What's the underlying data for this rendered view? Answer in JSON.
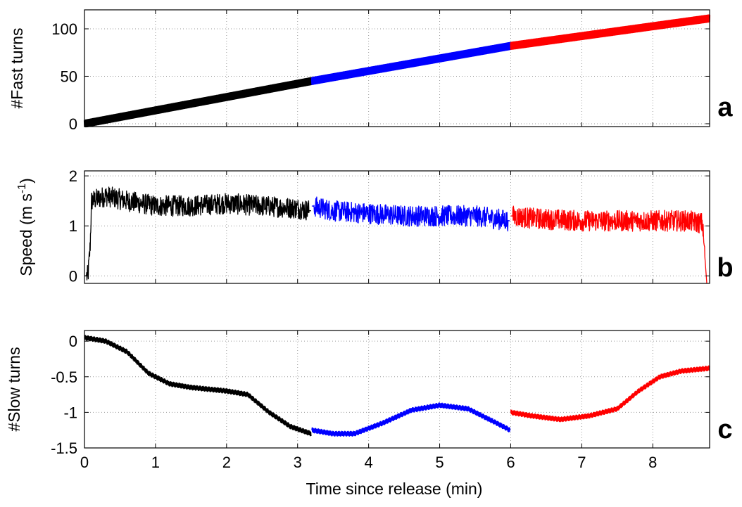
{
  "figure": {
    "x_axis_label": "Time since release (min)",
    "x_ticks": [
      0,
      1,
      2,
      3,
      4,
      5,
      6,
      7,
      8
    ],
    "x_range": [
      0,
      8.8
    ],
    "segment_colors": [
      "#000000",
      "#0000ff",
      "#ff0000"
    ],
    "segment_boundaries_min": [
      3.2,
      6.0
    ],
    "grid": "dotted"
  },
  "chart_data": [
    {
      "type": "line",
      "panel_letter": "a",
      "ylabel": "#Fast turns",
      "ylim": [
        -3,
        120
      ],
      "y_ticks": [
        0,
        50,
        100
      ],
      "y_tick_labels": [
        "0",
        "50",
        "100"
      ],
      "x": [
        0,
        3.2,
        6.0,
        8.8
      ],
      "series": [
        {
          "x": [
            0,
            3.2
          ],
          "y": [
            0,
            45
          ],
          "color": "#000000"
        },
        {
          "x": [
            3.2,
            6.0
          ],
          "y": [
            45,
            82
          ],
          "color": "#0000ff"
        },
        {
          "x": [
            6.0,
            8.8
          ],
          "y": [
            82,
            111
          ],
          "color": "#ff0000"
        }
      ]
    },
    {
      "type": "line",
      "panel_letter": "b",
      "ylabel": "Speed (m s-1)",
      "ylim": [
        -0.15,
        2.1
      ],
      "y_ticks": [
        0,
        1,
        2
      ],
      "y_tick_labels": [
        "0",
        "1",
        "2"
      ],
      "series": [
        {
          "x": [
            0,
            0.05,
            0.08,
            0.1,
            0.3,
            0.6,
            1.0,
            1.5,
            2.0,
            2.5,
            3.0,
            3.19
          ],
          "y": [
            0,
            0,
            0.6,
            1.5,
            1.6,
            1.5,
            1.4,
            1.4,
            1.45,
            1.4,
            1.35,
            1.3
          ],
          "color": "#000000"
        },
        {
          "x": [
            3.2,
            3.5,
            4.0,
            4.5,
            5.0,
            5.5,
            5.99
          ],
          "y": [
            1.4,
            1.3,
            1.25,
            1.2,
            1.2,
            1.2,
            1.1
          ],
          "color": "#0000ff"
        },
        {
          "x": [
            6.0,
            6.3,
            7.0,
            7.5,
            8.0,
            8.5,
            8.7,
            8.76
          ],
          "y": [
            1.2,
            1.15,
            1.1,
            1.1,
            1.1,
            1.1,
            1.05,
            -0.15
          ],
          "color": "#ff0000"
        }
      ]
    },
    {
      "type": "line",
      "panel_letter": "c",
      "ylabel": "#Slow turns",
      "ylim": [
        -1.5,
        0.15
      ],
      "y_ticks": [
        0,
        -0.5,
        -1,
        -1.5
      ],
      "y_tick_labels": [
        "0",
        "-0.5",
        "-1",
        "-1.5"
      ],
      "series": [
        {
          "x": [
            0,
            0.3,
            0.6,
            0.9,
            1.2,
            1.5,
            2.0,
            2.3,
            2.6,
            2.9,
            3.19
          ],
          "y": [
            0.05,
            0.0,
            -0.15,
            -0.45,
            -0.6,
            -0.65,
            -0.7,
            -0.75,
            -1.0,
            -1.2,
            -1.3
          ],
          "color": "#000000"
        },
        {
          "x": [
            3.2,
            3.5,
            3.8,
            4.2,
            4.6,
            5.0,
            5.4,
            5.8,
            5.99
          ],
          "y": [
            -1.25,
            -1.3,
            -1.3,
            -1.15,
            -0.97,
            -0.9,
            -0.95,
            -1.15,
            -1.25
          ],
          "color": "#0000ff"
        },
        {
          "x": [
            6.0,
            6.3,
            6.7,
            7.1,
            7.5,
            7.8,
            8.1,
            8.4,
            8.8
          ],
          "y": [
            -1.0,
            -1.05,
            -1.1,
            -1.05,
            -0.95,
            -0.7,
            -0.5,
            -0.42,
            -0.38
          ],
          "color": "#ff0000"
        }
      ]
    }
  ]
}
